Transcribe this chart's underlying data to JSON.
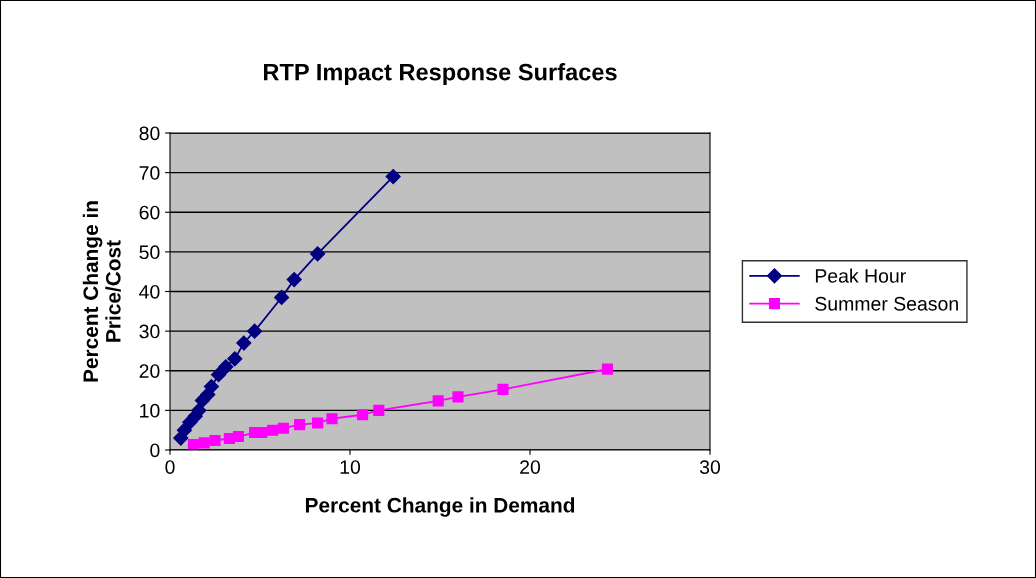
{
  "chart_data": {
    "type": "line",
    "title": "RTP Impact Response Surfaces",
    "xlabel": "Percent Change in Demand",
    "ylabel": "Percent Change in\nPrice/Cost",
    "xlim": [
      0,
      30
    ],
    "xticks": [
      0,
      10,
      20,
      30
    ],
    "ylim": [
      0,
      80
    ],
    "yticks": [
      0,
      10,
      20,
      30,
      40,
      50,
      60,
      70,
      80
    ],
    "grid": "y",
    "legend": "right",
    "series": [
      {
        "name": "Peak Hour",
        "color": "#000080",
        "marker": "diamond",
        "x": [
          0.6,
          0.8,
          1.1,
          1.4,
          1.6,
          1.8,
          2.1,
          2.3,
          2.7,
          3.1,
          3.6,
          4.1,
          4.7,
          6.2,
          6.9,
          8.2,
          12.4
        ],
        "values": [
          3,
          5,
          7,
          8.5,
          10,
          12.5,
          14,
          16,
          19,
          21,
          23,
          27,
          30,
          38.5,
          43,
          49.5,
          69
        ]
      },
      {
        "name": "Summer Season",
        "color": "#ff00ff",
        "marker": "square",
        "x": [
          1.3,
          1.9,
          2.5,
          3.3,
          3.8,
          4.7,
          5.1,
          5.7,
          6.3,
          7.2,
          8.2,
          9.0,
          10.7,
          11.6,
          14.9,
          16.0,
          18.5,
          24.3
        ],
        "values": [
          1.4,
          1.8,
          2.4,
          2.9,
          3.4,
          4.4,
          4.4,
          5.0,
          5.5,
          6.4,
          6.8,
          7.9,
          8.9,
          10.0,
          12.4,
          13.4,
          15.3,
          20.4
        ]
      }
    ]
  }
}
